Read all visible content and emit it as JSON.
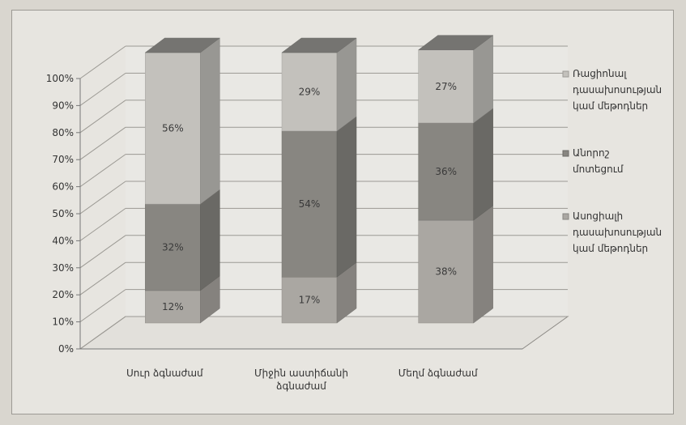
{
  "chart_data": {
    "type": "bar",
    "stacked": true,
    "percent": true,
    "three_d": true,
    "title": "",
    "xlabel": "",
    "ylabel": "",
    "ylim": [
      0,
      100
    ],
    "yticks": [
      "0%",
      "10%",
      "20%",
      "30%",
      "40%",
      "50%",
      "60%",
      "70%",
      "80%",
      "90%",
      "100%"
    ],
    "categories": [
      [
        "Սուր ձգնաժամ"
      ],
      [
        "Միջին աստիճանի",
        "ձգնաժամ"
      ],
      [
        "Մեղմ ձգնաժամ"
      ]
    ],
    "series": [
      {
        "name": [
          "Ասոցիալի",
          "դասախոսության",
          "կամ մեթոդներ"
        ],
        "values": [
          12,
          17,
          38
        ],
        "labels": [
          "12%",
          "17%",
          "38%"
        ],
        "color": "#aaa7a2"
      },
      {
        "name": [
          "Անորոշ",
          "մոտեցում"
        ],
        "values": [
          32,
          54,
          36
        ],
        "labels": [
          "32%",
          "54%",
          "36%"
        ],
        "color": "#888681"
      },
      {
        "name": [
          "Ռացիոնալ",
          "դասախոսության",
          "կամ մեթոդներ"
        ],
        "values": [
          56,
          29,
          27
        ],
        "labels": [
          "56%",
          "29%",
          "27%"
        ],
        "color": "#c3c1bc"
      }
    ],
    "legend_order": [
      2,
      1,
      0
    ],
    "legend_position": "right",
    "grid": true
  }
}
